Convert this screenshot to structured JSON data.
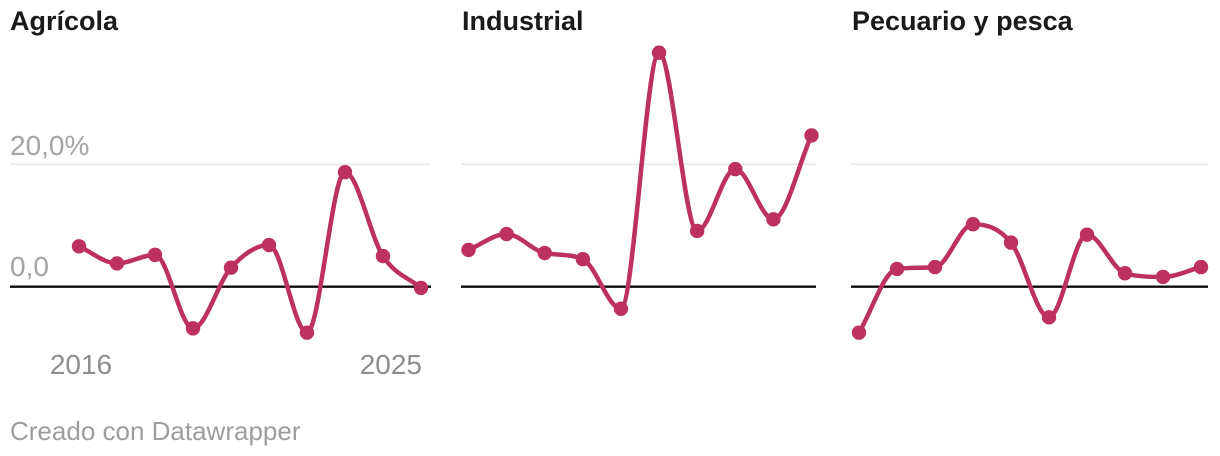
{
  "footer": {
    "credit": "Creado con Datawrapper"
  },
  "colors": {
    "background": "#ffffff",
    "line": "#bd3161",
    "zero_line": "#0d0d0d",
    "gridline": "#e4e4e4",
    "title_text": "#1a1a1a",
    "y_label_text": "#a4a4a4",
    "x_label_text": "#8d8d8d",
    "footer_text": "#9d9d9d"
  },
  "chart_data": [
    {
      "type": "line",
      "title": "Agrícola",
      "x": [
        2016,
        2017,
        2018,
        2019,
        2020,
        2021,
        2022,
        2023,
        2024,
        2025
      ],
      "values": [
        6.6,
        3.8,
        5.2,
        -6.8,
        3.1,
        6.8,
        -7.5,
        18.7,
        5.0,
        -0.2
      ],
      "unit": "%",
      "ylim": [
        -10,
        40
      ],
      "gridline_values": [
        20,
        0
      ],
      "ytick_labels": [
        "20,0%",
        "0,0"
      ],
      "xtick_labels": [
        "2016",
        "2025"
      ],
      "legend": "none",
      "markers": true
    },
    {
      "type": "line",
      "title": "Industrial",
      "x": [
        2016,
        2017,
        2018,
        2019,
        2020,
        2021,
        2022,
        2023,
        2024,
        2025
      ],
      "values": [
        6.0,
        8.6,
        5.5,
        4.5,
        -3.6,
        38.2,
        9.1,
        19.2,
        11.0,
        24.7
      ],
      "unit": "%",
      "ylim": [
        -10,
        40
      ],
      "gridline_values": [
        20,
        0
      ],
      "ytick_labels": [],
      "xtick_labels": [],
      "legend": "none",
      "markers": true
    },
    {
      "type": "line",
      "title": "Pecuario y pesca",
      "x": [
        2016,
        2017,
        2018,
        2019,
        2020,
        2021,
        2022,
        2023,
        2024,
        2025
      ],
      "values": [
        -7.5,
        2.9,
        3.2,
        10.2,
        7.2,
        -5.0,
        8.5,
        2.2,
        1.6,
        3.2
      ],
      "unit": "%",
      "ylim": [
        -10,
        40
      ],
      "gridline_values": [
        20,
        0
      ],
      "ytick_labels": [],
      "xtick_labels": [],
      "legend": "none",
      "markers": true
    }
  ]
}
